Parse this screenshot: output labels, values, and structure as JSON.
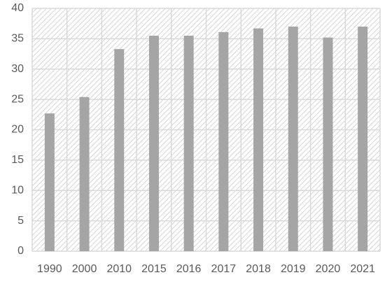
{
  "chart_data": {
    "type": "bar",
    "categories": [
      "1990",
      "2000",
      "2010",
      "2015",
      "2016",
      "2017",
      "2018",
      "2019",
      "2020",
      "2021"
    ],
    "values": [
      22.7,
      25.4,
      33.3,
      35.5,
      35.5,
      36.1,
      36.7,
      37.0,
      35.2,
      37.0
    ],
    "color": "#a5a5a5",
    "ylim": [
      0,
      40
    ],
    "yticks": [
      0,
      5,
      10,
      15,
      20,
      25,
      30,
      35,
      40
    ],
    "grid": true
  }
}
